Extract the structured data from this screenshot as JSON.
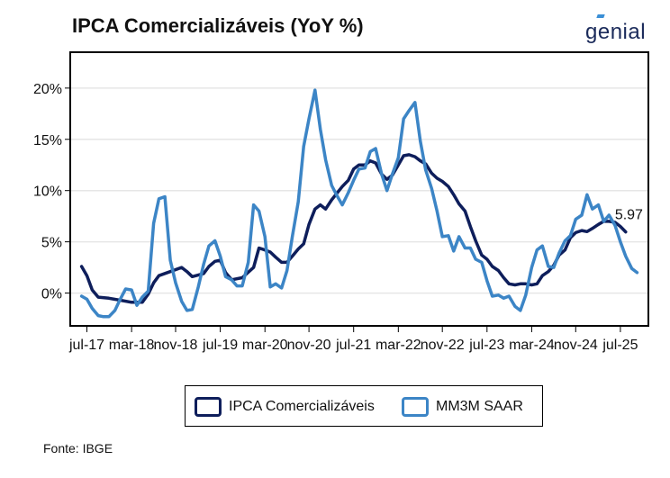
{
  "header": {
    "title": "IPCA Comercializáveis (YoY %)",
    "logo_text": "genial"
  },
  "source": "Fonte: IBGE",
  "colors": {
    "series_dark": "#0e1e5b",
    "series_light": "#3c85c6",
    "grid": "#e6e6e6"
  },
  "chart_data": {
    "type": "line",
    "title": "IPCA Comercializáveis (YoY %)",
    "xlabel": "",
    "ylabel": "",
    "xlim": [
      2017.25,
      2025.92
    ],
    "ylim": [
      -3.2,
      23.5
    ],
    "grid": "horizontal",
    "legend_position": "bottom",
    "x_ticks": [
      {
        "label": "jul-17",
        "x": 2017.5
      },
      {
        "label": "mar-18",
        "x": 2018.17
      },
      {
        "label": "nov-18",
        "x": 2018.83
      },
      {
        "label": "jul-19",
        "x": 2019.5
      },
      {
        "label": "mar-20",
        "x": 2020.17
      },
      {
        "label": "nov-20",
        "x": 2020.83
      },
      {
        "label": "jul-21",
        "x": 2021.5
      },
      {
        "label": "mar-22",
        "x": 2022.17
      },
      {
        "label": "nov-22",
        "x": 2022.83
      },
      {
        "label": "jul-23",
        "x": 2023.5
      },
      {
        "label": "mar-24",
        "x": 2024.17
      },
      {
        "label": "nov-24",
        "x": 2024.83
      },
      {
        "label": "jul-25",
        "x": 2025.5
      }
    ],
    "y_ticks": [
      {
        "label": "0%",
        "y": 0
      },
      {
        "label": "5%",
        "y": 5
      },
      {
        "label": "10%",
        "y": 10
      },
      {
        "label": "15%",
        "y": 15
      },
      {
        "label": "20%",
        "y": 20
      }
    ],
    "series": [
      {
        "name": "IPCA Comercializáveis",
        "color": "#0e1e5b",
        "points": [
          [
            2017.42,
            2.6
          ],
          [
            2017.5,
            1.7
          ],
          [
            2017.58,
            0.3
          ],
          [
            2017.67,
            -0.4
          ],
          [
            2017.83,
            -0.5
          ],
          [
            2018.0,
            -0.7
          ],
          [
            2018.17,
            -0.9
          ],
          [
            2018.33,
            -0.9
          ],
          [
            2018.42,
            -0.1
          ],
          [
            2018.5,
            1.0
          ],
          [
            2018.58,
            1.7
          ],
          [
            2018.75,
            2.1
          ],
          [
            2018.92,
            2.5
          ],
          [
            2019.0,
            2.1
          ],
          [
            2019.08,
            1.6
          ],
          [
            2019.25,
            1.9
          ],
          [
            2019.33,
            2.6
          ],
          [
            2019.42,
            3.1
          ],
          [
            2019.5,
            3.2
          ],
          [
            2019.58,
            2.0
          ],
          [
            2019.67,
            1.3
          ],
          [
            2019.83,
            1.5
          ],
          [
            2020.0,
            2.5
          ],
          [
            2020.08,
            4.4
          ],
          [
            2020.17,
            4.2
          ],
          [
            2020.25,
            4.0
          ],
          [
            2020.33,
            3.5
          ],
          [
            2020.42,
            3.0
          ],
          [
            2020.5,
            3.0
          ],
          [
            2020.58,
            3.6
          ],
          [
            2020.67,
            4.3
          ],
          [
            2020.75,
            4.8
          ],
          [
            2020.83,
            6.7
          ],
          [
            2020.92,
            8.2
          ],
          [
            2021.0,
            8.6
          ],
          [
            2021.08,
            8.2
          ],
          [
            2021.17,
            9.1
          ],
          [
            2021.33,
            10.4
          ],
          [
            2021.42,
            11.0
          ],
          [
            2021.5,
            12.1
          ],
          [
            2021.58,
            12.5
          ],
          [
            2021.67,
            12.5
          ],
          [
            2021.75,
            12.9
          ],
          [
            2021.83,
            12.7
          ],
          [
            2021.92,
            11.6
          ],
          [
            2022.0,
            11.1
          ],
          [
            2022.08,
            11.5
          ],
          [
            2022.17,
            12.5
          ],
          [
            2022.25,
            13.4
          ],
          [
            2022.33,
            13.5
          ],
          [
            2022.42,
            13.3
          ],
          [
            2022.5,
            12.9
          ],
          [
            2022.58,
            12.6
          ],
          [
            2022.67,
            11.7
          ],
          [
            2022.75,
            11.2
          ],
          [
            2022.83,
            10.9
          ],
          [
            2022.92,
            10.4
          ],
          [
            2023.0,
            9.6
          ],
          [
            2023.08,
            8.7
          ],
          [
            2023.17,
            8.0
          ],
          [
            2023.25,
            6.5
          ],
          [
            2023.33,
            5.1
          ],
          [
            2023.42,
            3.7
          ],
          [
            2023.5,
            3.3
          ],
          [
            2023.58,
            2.6
          ],
          [
            2023.67,
            2.2
          ],
          [
            2023.75,
            1.5
          ],
          [
            2023.83,
            0.9
          ],
          [
            2023.92,
            0.8
          ],
          [
            2024.0,
            0.9
          ],
          [
            2024.08,
            0.9
          ],
          [
            2024.17,
            0.8
          ],
          [
            2024.25,
            0.9
          ],
          [
            2024.33,
            1.7
          ],
          [
            2024.42,
            2.1
          ],
          [
            2024.5,
            2.7
          ],
          [
            2024.58,
            3.7
          ],
          [
            2024.67,
            4.2
          ],
          [
            2024.75,
            5.4
          ],
          [
            2024.83,
            5.9
          ],
          [
            2024.92,
            6.1
          ],
          [
            2025.0,
            6.0
          ],
          [
            2025.08,
            6.3
          ],
          [
            2025.17,
            6.7
          ],
          [
            2025.25,
            7.0
          ],
          [
            2025.33,
            7.0
          ],
          [
            2025.42,
            6.9
          ],
          [
            2025.5,
            6.5
          ],
          [
            2025.58,
            5.97
          ]
        ]
      },
      {
        "name": "MM3M SAAR",
        "color": "#3c85c6",
        "points": [
          [
            2017.42,
            -0.3
          ],
          [
            2017.5,
            -0.6
          ],
          [
            2017.58,
            -1.5
          ],
          [
            2017.67,
            -2.2
          ],
          [
            2017.75,
            -2.3
          ],
          [
            2017.83,
            -2.3
          ],
          [
            2017.92,
            -1.7
          ],
          [
            2018.0,
            -0.6
          ],
          [
            2018.08,
            0.4
          ],
          [
            2018.17,
            0.3
          ],
          [
            2018.25,
            -1.2
          ],
          [
            2018.33,
            -0.4
          ],
          [
            2018.42,
            0.2
          ],
          [
            2018.5,
            6.8
          ],
          [
            2018.58,
            9.2
          ],
          [
            2018.67,
            9.4
          ],
          [
            2018.75,
            3.2
          ],
          [
            2018.83,
            1.0
          ],
          [
            2018.92,
            -0.8
          ],
          [
            2019.0,
            -1.7
          ],
          [
            2019.08,
            -1.6
          ],
          [
            2019.17,
            0.6
          ],
          [
            2019.25,
            2.8
          ],
          [
            2019.33,
            4.6
          ],
          [
            2019.42,
            5.1
          ],
          [
            2019.5,
            3.6
          ],
          [
            2019.58,
            1.6
          ],
          [
            2019.67,
            1.3
          ],
          [
            2019.75,
            0.7
          ],
          [
            2019.83,
            0.7
          ],
          [
            2019.92,
            3.0
          ],
          [
            2020.0,
            8.6
          ],
          [
            2020.08,
            8.0
          ],
          [
            2020.17,
            5.5
          ],
          [
            2020.25,
            0.6
          ],
          [
            2020.33,
            0.9
          ],
          [
            2020.42,
            0.5
          ],
          [
            2020.5,
            2.2
          ],
          [
            2020.58,
            5.5
          ],
          [
            2020.67,
            8.9
          ],
          [
            2020.75,
            14.3
          ],
          [
            2020.83,
            17.0
          ],
          [
            2020.92,
            19.8
          ],
          [
            2021.0,
            16.0
          ],
          [
            2021.08,
            13.0
          ],
          [
            2021.17,
            10.5
          ],
          [
            2021.25,
            9.5
          ],
          [
            2021.33,
            8.6
          ],
          [
            2021.42,
            9.8
          ],
          [
            2021.5,
            11.0
          ],
          [
            2021.58,
            12.1
          ],
          [
            2021.67,
            12.2
          ],
          [
            2021.75,
            13.8
          ],
          [
            2021.83,
            14.1
          ],
          [
            2021.92,
            11.6
          ],
          [
            2022.0,
            10.0
          ],
          [
            2022.08,
            11.6
          ],
          [
            2022.17,
            13.2
          ],
          [
            2022.25,
            17.0
          ],
          [
            2022.33,
            17.8
          ],
          [
            2022.42,
            18.6
          ],
          [
            2022.5,
            14.8
          ],
          [
            2022.58,
            12.0
          ],
          [
            2022.67,
            10.2
          ],
          [
            2022.75,
            8.0
          ],
          [
            2022.83,
            5.5
          ],
          [
            2022.92,
            5.6
          ],
          [
            2023.0,
            4.1
          ],
          [
            2023.08,
            5.5
          ],
          [
            2023.17,
            4.4
          ],
          [
            2023.25,
            4.4
          ],
          [
            2023.33,
            3.3
          ],
          [
            2023.42,
            3.0
          ],
          [
            2023.5,
            1.2
          ],
          [
            2023.58,
            -0.3
          ],
          [
            2023.67,
            -0.2
          ],
          [
            2023.75,
            -0.5
          ],
          [
            2023.83,
            -0.3
          ],
          [
            2023.92,
            -1.3
          ],
          [
            2024.0,
            -1.7
          ],
          [
            2024.08,
            -0.2
          ],
          [
            2024.17,
            2.5
          ],
          [
            2024.25,
            4.2
          ],
          [
            2024.33,
            4.6
          ],
          [
            2024.42,
            2.6
          ],
          [
            2024.5,
            2.5
          ],
          [
            2024.58,
            3.9
          ],
          [
            2024.67,
            5.1
          ],
          [
            2024.75,
            5.6
          ],
          [
            2024.83,
            7.2
          ],
          [
            2024.92,
            7.6
          ],
          [
            2025.0,
            9.6
          ],
          [
            2025.08,
            8.2
          ],
          [
            2025.17,
            8.6
          ],
          [
            2025.25,
            7.0
          ],
          [
            2025.33,
            7.6
          ],
          [
            2025.42,
            6.6
          ],
          [
            2025.5,
            5.0
          ],
          [
            2025.58,
            3.6
          ],
          [
            2025.67,
            2.4
          ],
          [
            2025.75,
            2.0
          ]
        ]
      }
    ],
    "annotations": [
      {
        "text": "5.97",
        "x": 2025.58,
        "y": 5.97,
        "series": "IPCA Comercializáveis"
      }
    ]
  },
  "legend": {
    "items": [
      {
        "label": "IPCA Comercializáveis",
        "color": "#0e1e5b"
      },
      {
        "label": "MM3M SAAR",
        "color": "#3c85c6"
      }
    ]
  }
}
